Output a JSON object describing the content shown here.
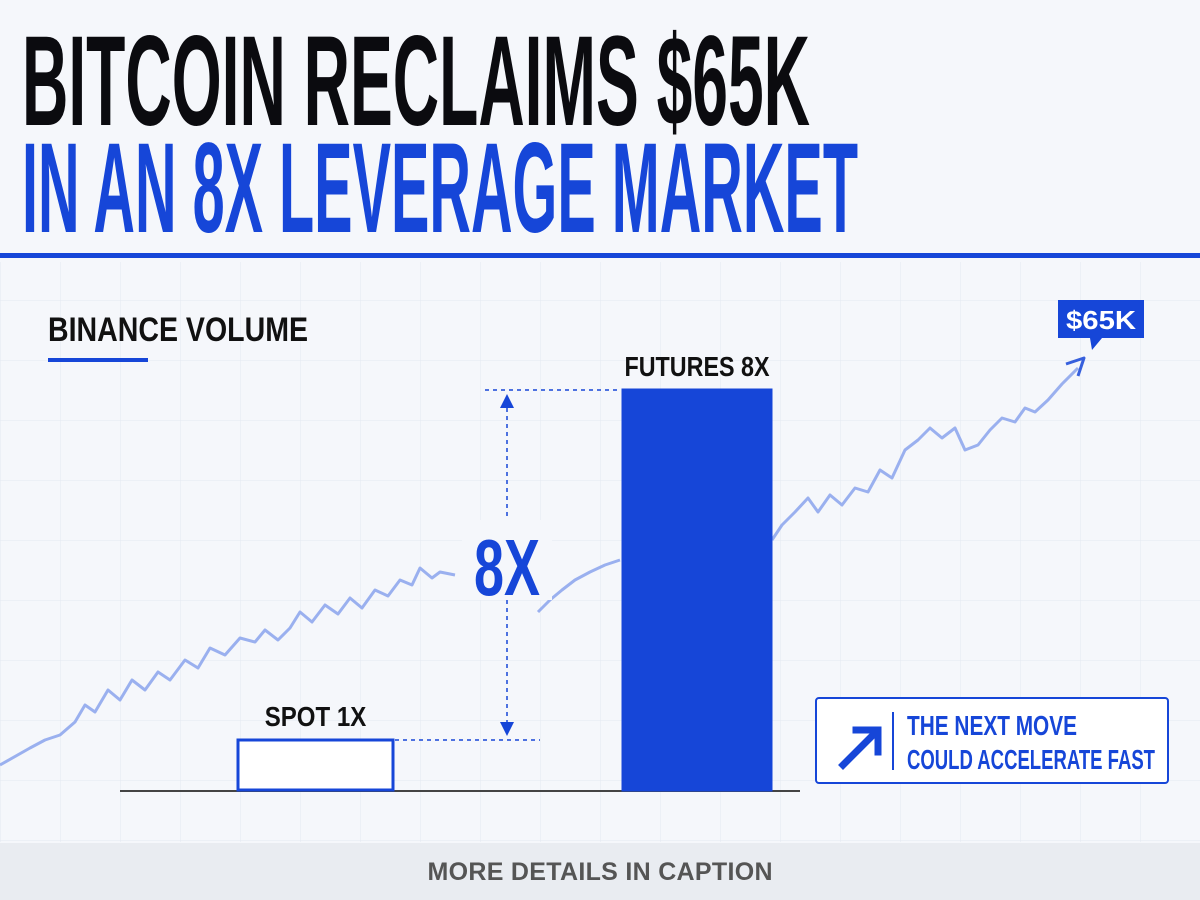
{
  "chart_data": {
    "type": "bar",
    "title": "BITCOIN RECLAIMS $65K",
    "subtitle": "IN AN 8X LEVERAGE MARKET",
    "section_label": "BINANCE VOLUME",
    "categories": [
      "SPOT 1X",
      "FUTURES 8X"
    ],
    "values": [
      1,
      8
    ],
    "bar_fills": [
      "#ffffff",
      "#1646d8"
    ],
    "bar_stroke": "#1646d8",
    "ratio_label": "8X",
    "price_tag": "$65K",
    "callout": [
      "THE NEXT MOVE",
      "COULD ACCELERATE FAST"
    ],
    "footer": "MORE DETAILS IN CAPTION"
  }
}
